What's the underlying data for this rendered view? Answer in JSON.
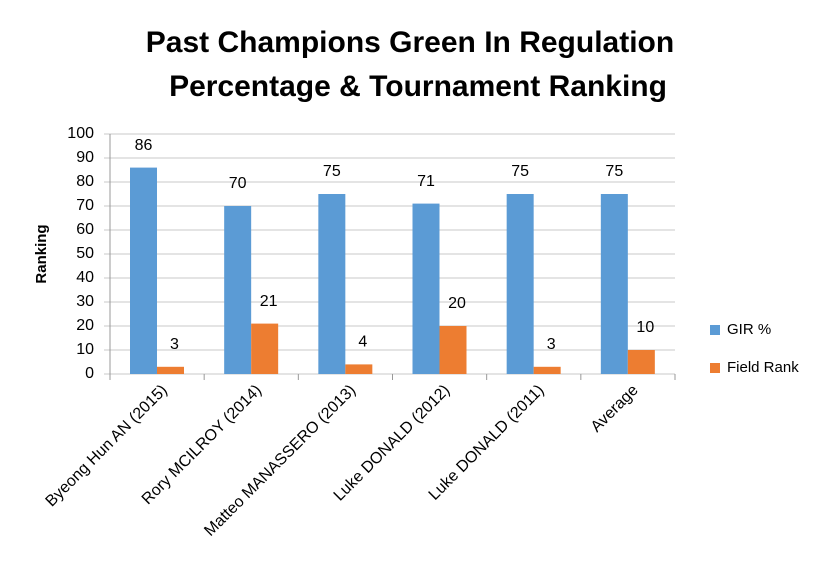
{
  "chart_data": {
    "type": "bar",
    "title": [
      "Past Champions Green In Regulation",
      "Percentage & Tournament Ranking"
    ],
    "y_label": "Ranking",
    "categories": [
      "Byeong Hun AN (2015)",
      "Rory MCILROY (2014)",
      "Matteo MANASSERO (2013)",
      "Luke DONALD (2012)",
      "Luke DONALD (2011)",
      "Average"
    ],
    "series": [
      {
        "name": "GIR %",
        "color": "#5b9bd5",
        "values": [
          86,
          70,
          75,
          71,
          75,
          75
        ]
      },
      {
        "name": "Field Rank",
        "color": "#ed7d31",
        "values": [
          3,
          21,
          4,
          20,
          3,
          10
        ]
      }
    ],
    "ylim": [
      0,
      100
    ],
    "yticks": [
      0,
      10,
      20,
      30,
      40,
      50,
      60,
      70,
      80,
      90,
      100
    ],
    "grid": true,
    "legend": "right"
  }
}
